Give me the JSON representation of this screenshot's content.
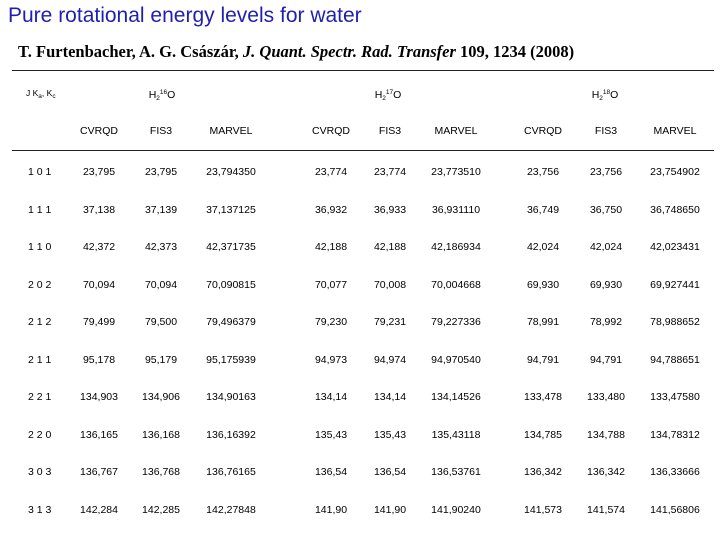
{
  "title": "Pure rotational energy levels for water",
  "citation": {
    "authors": "T. Furtenbacher, A. G. Császár, ",
    "journal": "J. Quant. Spectr. Rad. Transfer",
    "details": " 109, 1234 (2008)"
  },
  "table": {
    "label_header": {
      "j": "J",
      "ka": "K",
      "ka_sub": "a",
      "kc": "K",
      "kc_sub": "c"
    },
    "groups": [
      {
        "base": "H",
        "sub": "2",
        "sup": "16",
        "tail": "O"
      },
      {
        "base": "H",
        "sub": "2",
        "sup": "17",
        "tail": "O"
      },
      {
        "base": "H",
        "sub": "2",
        "sup": "18",
        "tail": "O"
      }
    ],
    "subheaders": [
      "CVRQD",
      "FIS3",
      "MARVEL",
      "CVRQD",
      "FIS3",
      "MARVEL",
      "CVRQD",
      "FIS3",
      "MARVEL"
    ],
    "rows": [
      {
        "label": "1 0 1",
        "values": [
          "23,795",
          "23,795",
          "23,794350",
          "23,774",
          "23,774",
          "23,773510",
          "23,756",
          "23,756",
          "23,754902"
        ]
      },
      {
        "label": "1 1 1",
        "values": [
          "37,138",
          "37,139",
          "37,137125",
          "36,932",
          "36,933",
          "36,931110",
          "36,749",
          "36,750",
          "36,748650"
        ]
      },
      {
        "label": "1 1 0",
        "values": [
          "42,372",
          "42,373",
          "42,371735",
          "42,188",
          "42,188",
          "42,186934",
          "42,024",
          "42,024",
          "42,023431"
        ]
      },
      {
        "label": "2 0 2",
        "values": [
          "70,094",
          "70,094",
          "70,090815",
          "70,077",
          "70,008",
          "70,004668",
          "69,930",
          "69,930",
          "69,927441"
        ]
      },
      {
        "label": "2 1 2",
        "values": [
          "79,499",
          "79,500",
          "79,496379",
          "79,230",
          "79,231",
          "79,227336",
          "78,991",
          "78,992",
          "78,988652"
        ]
      },
      {
        "label": "2 1 1",
        "values": [
          "95,178",
          "95,179",
          "95,175939",
          "94,973",
          "94,974",
          "94,970540",
          "94,791",
          "94,791",
          "94,788651"
        ]
      },
      {
        "label": "2 2 1",
        "values": [
          "134,903",
          "134,906",
          "134,90163",
          "134,14",
          "134,14",
          "134,14526",
          "133,478",
          "133,480",
          "133,47580"
        ]
      },
      {
        "label": "2 2 0",
        "values": [
          "136,165",
          "136,168",
          "136,16392",
          "135,43",
          "135,43",
          "135,43118",
          "134,785",
          "134,788",
          "134,78312"
        ]
      },
      {
        "label": "3 0 3",
        "values": [
          "136,767",
          "136,768",
          "136,76165",
          "136,54",
          "136,54",
          "136,53761",
          "136,342",
          "136,342",
          "136,33666"
        ]
      },
      {
        "label": "3 1 3",
        "values": [
          "142,284",
          "142,285",
          "142,27848",
          "141,90",
          "141,90",
          "141,90240",
          "141,573",
          "141,574",
          "141,56806"
        ]
      }
    ]
  }
}
